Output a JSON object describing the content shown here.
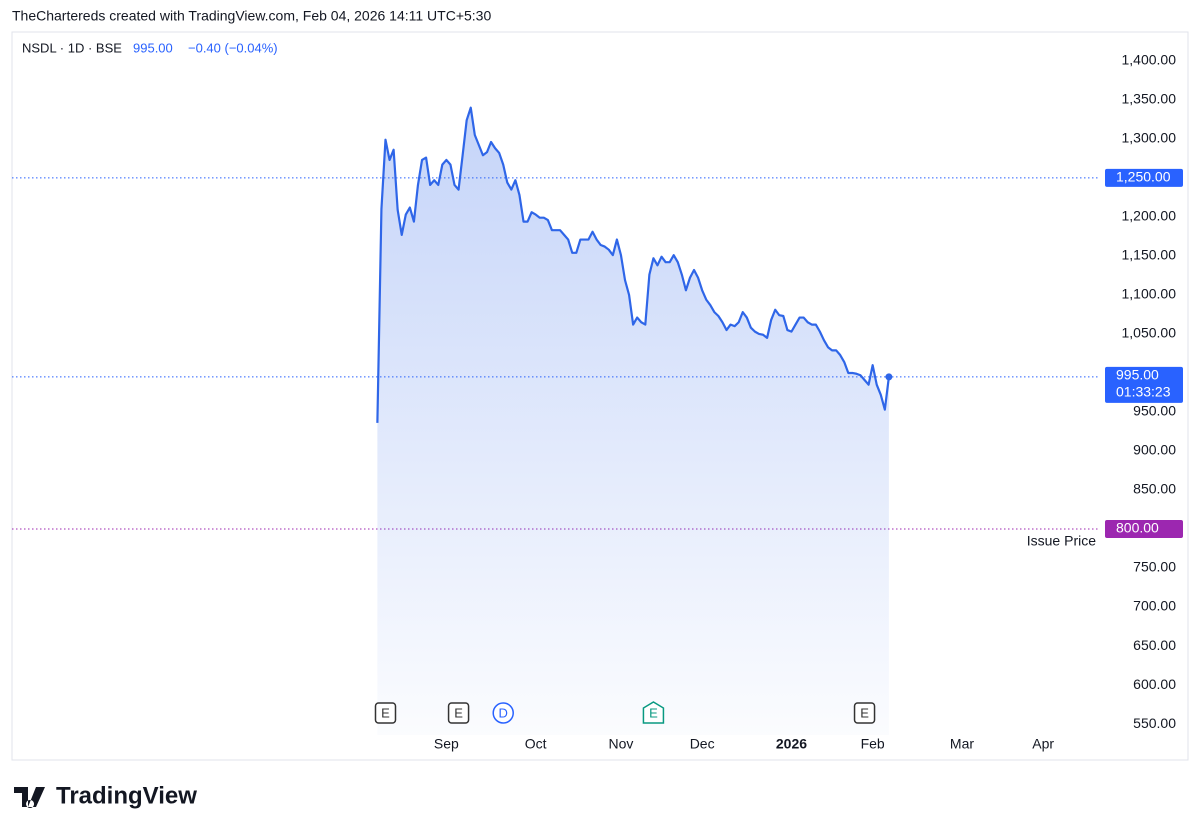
{
  "header": "TheChartereds created with TradingView.com, Feb 04, 2026 14:11 UTC+5:30",
  "footer": "TradingView",
  "chart_data": {
    "type": "area",
    "legend": {
      "symbol": "NSDL · 1D · BSE",
      "price": "995.00",
      "change": "−0.40 (−0.04%)"
    },
    "x": [
      0,
      1,
      2,
      3,
      4,
      5,
      6,
      7,
      8,
      9,
      10,
      11,
      12,
      13,
      14,
      15,
      16,
      17,
      18,
      19,
      20,
      21,
      22,
      23,
      24,
      25,
      26,
      27,
      28,
      29,
      30,
      31,
      32,
      33,
      34,
      35,
      36,
      37,
      38,
      39,
      40,
      41,
      42,
      43,
      44,
      45,
      46,
      47,
      48,
      49,
      50,
      51,
      52,
      53,
      54,
      55,
      56,
      57,
      58,
      59,
      60,
      61,
      62,
      63,
      64,
      65,
      66,
      67,
      68,
      69,
      70,
      71,
      72,
      73,
      74,
      75,
      76,
      77,
      78,
      79,
      80,
      81,
      82,
      83,
      84,
      85,
      86,
      87,
      88,
      89,
      90,
      91,
      92,
      93,
      94,
      95,
      96,
      97,
      98,
      99,
      100,
      101,
      102,
      103,
      104,
      105,
      106,
      107,
      108,
      109,
      110,
      111,
      112,
      113,
      114,
      115,
      116,
      117,
      118,
      119,
      120,
      121,
      122,
      123,
      124,
      125,
      126
    ],
    "series": [
      {
        "name": "NSDL",
        "color": "#2f66e8",
        "values": [
          936,
          1210,
          1299,
          1273,
          1286,
          1209,
          1177,
          1203,
          1212,
          1194,
          1241,
          1273,
          1276,
          1241,
          1247,
          1241,
          1267,
          1273,
          1267,
          1241,
          1235,
          1279,
          1324,
          1340,
          1305,
          1292,
          1279,
          1283,
          1296,
          1288,
          1282,
          1267,
          1244,
          1235,
          1247,
          1228,
          1194,
          1194,
          1206,
          1203,
          1199,
          1199,
          1196,
          1183,
          1183,
          1183,
          1177,
          1171,
          1154,
          1154,
          1171,
          1171,
          1171,
          1181,
          1171,
          1164,
          1162,
          1158,
          1151,
          1171,
          1151,
          1119,
          1100,
          1062,
          1071,
          1065,
          1062,
          1126,
          1147,
          1138,
          1149,
          1142,
          1142,
          1151,
          1142,
          1126,
          1106,
          1122,
          1132,
          1122,
          1106,
          1094,
          1087,
          1078,
          1073,
          1065,
          1055,
          1062,
          1060,
          1065,
          1078,
          1071,
          1058,
          1053,
          1050,
          1049,
          1045,
          1068,
          1081,
          1074,
          1073,
          1055,
          1053,
          1062,
          1071,
          1071,
          1065,
          1062,
          1062,
          1053,
          1042,
          1033,
          1029,
          1029,
          1023,
          1014,
          1000,
          1000,
          999,
          997,
          991,
          985,
          1010,
          985,
          972,
          953,
          995
        ]
      }
    ],
    "xlim": [
      -90,
      178
    ],
    "xticks": [
      {
        "value": 17,
        "label": "Sep"
      },
      {
        "value": 39,
        "label": "Oct"
      },
      {
        "value": 60,
        "label": "Nov"
      },
      {
        "value": 80,
        "label": "Dec"
      },
      {
        "value": 102,
        "label": "2026"
      },
      {
        "value": 122,
        "label": "Feb"
      },
      {
        "value": 144,
        "label": "Mar"
      },
      {
        "value": 164,
        "label": "Apr"
      }
    ],
    "ylim": [
      536,
      1437
    ],
    "yticks": [
      {
        "value": 550,
        "label": "550.00"
      },
      {
        "value": 600,
        "label": "600.00"
      },
      {
        "value": 650,
        "label": "650.00"
      },
      {
        "value": 700,
        "label": "700.00"
      },
      {
        "value": 750,
        "label": "750.00"
      },
      {
        "value": 850,
        "label": "850.00"
      },
      {
        "value": 900,
        "label": "900.00"
      },
      {
        "value": 950,
        "label": "950.00"
      },
      {
        "value": 1050,
        "label": "1,050.00"
      },
      {
        "value": 1100,
        "label": "1,100.00"
      },
      {
        "value": 1150,
        "label": "1,150.00"
      },
      {
        "value": 1200,
        "label": "1,200.00"
      },
      {
        "value": 1300,
        "label": "1,300.00"
      },
      {
        "value": 1350,
        "label": "1,350.00"
      },
      {
        "value": 1400,
        "label": "1,400.00"
      }
    ],
    "price_lines": [
      {
        "value": 1250,
        "label": "1,250.00",
        "color": "#2962ff"
      },
      {
        "value": 995,
        "label": "995.00",
        "countdown": "01:33:23",
        "color": "#2962ff"
      },
      {
        "value": 800,
        "label": "800.00",
        "title": "Issue Price",
        "color": "#9c27b0"
      }
    ],
    "events": [
      {
        "x": 2,
        "label": "E",
        "color": "#333333"
      },
      {
        "x": 20,
        "label": "E",
        "color": "#333333"
      },
      {
        "x": 31,
        "label": "D",
        "color": "#2962ff"
      },
      {
        "x": 68,
        "label": "E",
        "color": "#089981"
      },
      {
        "x": 120,
        "label": "E",
        "color": "#333333"
      }
    ]
  }
}
